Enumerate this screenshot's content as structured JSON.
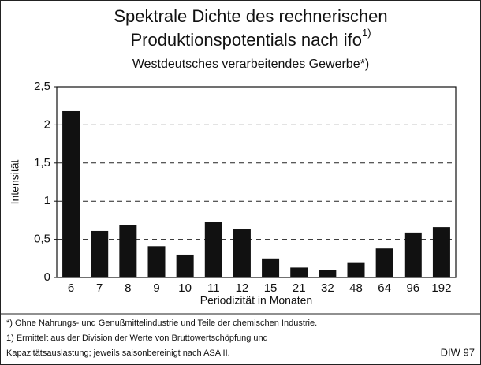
{
  "chart_data": {
    "type": "bar",
    "title_lines": [
      "Spektrale Dichte des rechnerischen",
      "Produktionspotentials nach ifo"
    ],
    "title_note": "1)",
    "subtitle": "Westdeutsches verarbeitendes Gewerbe*)",
    "y_label": "Intensität",
    "x_label": "Periodizität in Monaten",
    "categories": [
      "6",
      "7",
      "8",
      "9",
      "10",
      "11",
      "12",
      "15",
      "21",
      "32",
      "48",
      "64",
      "96",
      "192"
    ],
    "values": [
      2.18,
      0.61,
      0.69,
      0.41,
      0.3,
      0.73,
      0.63,
      0.25,
      0.13,
      0.1,
      0.2,
      0.38,
      0.59,
      0.66
    ],
    "color": "#111111",
    "ylim": [
      0,
      2.5
    ],
    "yticks": [
      0,
      {
        "value": 0.5,
        "label": "0,5"
      },
      1,
      {
        "value": 1.5,
        "label": "1,5"
      },
      2,
      {
        "value": 2.5,
        "label": "2,5"
      }
    ],
    "grid": true,
    "footnotes": [
      "*) Ohne Nahrungs- und Genußmittelindustrie und Teile der chemischen Industrie.",
      "1) Ermittelt aus der Division der Werte von Bruttowertschöpfung und",
      "Kapazitätsauslastung; jeweils saisonbereinigt nach ASA II."
    ],
    "source": "DIW 97"
  }
}
